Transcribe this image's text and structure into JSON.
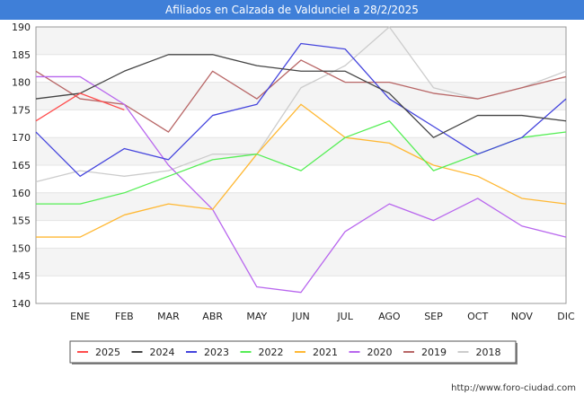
{
  "chart_data": {
    "type": "line",
    "title": "Afiliados en Calzada de Valdunciel a 28/2/2025",
    "categories": [
      "",
      "ENE",
      "FEB",
      "MAR",
      "ABR",
      "MAY",
      "JUN",
      "JUL",
      "AGO",
      "SEP",
      "OCT",
      "NOV",
      "DIC"
    ],
    "ylim": [
      140,
      190
    ],
    "yticks": [
      140,
      145,
      150,
      155,
      160,
      165,
      170,
      175,
      180,
      185,
      190
    ],
    "grid": true,
    "legend_position": "bottom",
    "series": [
      {
        "name": "2025",
        "color": "#ff4d4d",
        "values": [
          173,
          178,
          175,
          null,
          null,
          null,
          null,
          null,
          null,
          null,
          null,
          null,
          null
        ]
      },
      {
        "name": "2024",
        "color": "#444444",
        "values": [
          177,
          178,
          182,
          185,
          185,
          183,
          182,
          182,
          178,
          170,
          174,
          174,
          173
        ]
      },
      {
        "name": "2023",
        "color": "#4444dd",
        "values": [
          171,
          163,
          168,
          166,
          174,
          176,
          187,
          186,
          177,
          172,
          167,
          170,
          177
        ]
      },
      {
        "name": "2022",
        "color": "#55ee55",
        "values": [
          158,
          158,
          160,
          163,
          166,
          167,
          164,
          170,
          173,
          164,
          167,
          170,
          171
        ]
      },
      {
        "name": "2021",
        "color": "#ffb833",
        "values": [
          152,
          152,
          156,
          158,
          157,
          167,
          176,
          170,
          169,
          165,
          163,
          159,
          158
        ]
      },
      {
        "name": "2020",
        "color": "#b866ee",
        "values": [
          181,
          181,
          176,
          165,
          157,
          143,
          142,
          153,
          158,
          155,
          159,
          154,
          152
        ]
      },
      {
        "name": "2019",
        "color": "#b86666",
        "values": [
          182,
          177,
          176,
          171,
          182,
          177,
          184,
          180,
          180,
          178,
          177,
          179,
          181
        ]
      },
      {
        "name": "2018",
        "color": "#cccccc",
        "values": [
          162,
          164,
          163,
          164,
          167,
          167,
          179,
          183,
          190,
          179,
          177,
          179,
          182
        ]
      }
    ]
  },
  "footer": {
    "url": "http://www.foro-ciudad.com"
  }
}
